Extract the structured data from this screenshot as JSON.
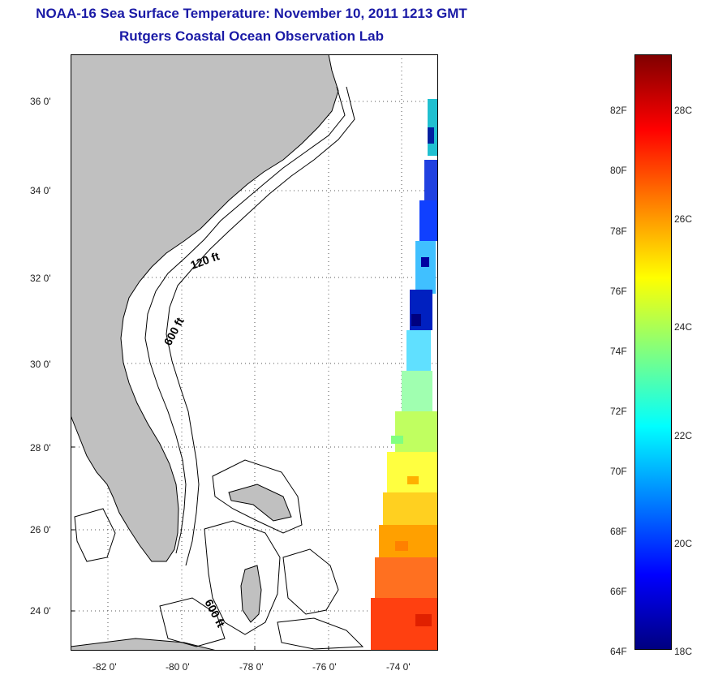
{
  "title": {
    "line1": "NOAA-16 Sea Surface Temperature:  November 10, 2011 1213 GMT",
    "line2": "Rutgers Coastal Ocean Observation Lab"
  },
  "map": {
    "lat_ticks": [
      "36 0'",
      "34 0'",
      "32 0'",
      "30 0'",
      "28 0'",
      "26 0'",
      "24 0'"
    ],
    "lon_ticks": [
      "-82 0'",
      "-80 0'",
      "-78 0'",
      "-76 0'",
      "-74 0'"
    ],
    "contour_labels": [
      "120 ft",
      "600 ft",
      "600 ft"
    ],
    "land_color": "#c0c0c0",
    "grid": "dotted"
  },
  "colorbar": {
    "fahrenheit_labels": [
      "82F",
      "80F",
      "78F",
      "76F",
      "74F",
      "72F",
      "70F",
      "68F",
      "66F",
      "64F"
    ],
    "celsius_labels": [
      "28C",
      "26C",
      "24C",
      "22C",
      "20C",
      "18C"
    ],
    "colors": [
      "#800000",
      "#ff0000",
      "#ff8000",
      "#ffff00",
      "#80ff80",
      "#00ffff",
      "#0080ff",
      "#0000ff",
      "#000080"
    ]
  }
}
